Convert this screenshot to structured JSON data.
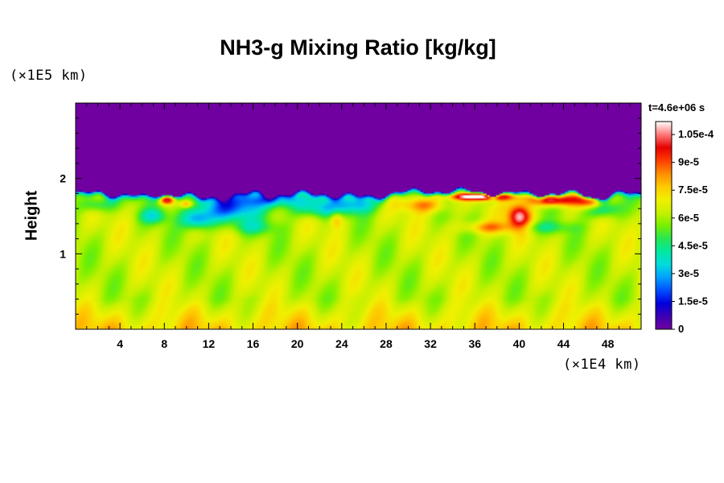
{
  "chart_data": {
    "type": "heatmap",
    "title": "NH3-g Mixing Ratio [kg/kg]",
    "xlabel": "",
    "ylabel": "Height",
    "x_unit_label": "(×1E4 km)",
    "y_unit_label": "(×1E5 km)",
    "time_label": "t=4.6e+06 s",
    "xlim": [
      0,
      51
    ],
    "ylim": [
      0,
      3
    ],
    "x_ticks": [
      4,
      8,
      12,
      16,
      20,
      24,
      28,
      32,
      36,
      40,
      44,
      48
    ],
    "x_tick_labels": [
      "4",
      "8",
      "12",
      "16",
      "20",
      "24",
      "28",
      "32",
      "36",
      "40",
      "44",
      "48"
    ],
    "y_ticks": [
      1,
      2
    ],
    "y_tick_labels": [
      "1",
      "2"
    ],
    "colorbar": {
      "min": 0,
      "max": 0.000112,
      "ticks": [
        0,
        1.5e-05,
        3e-05,
        4.5e-05,
        6e-05,
        7.5e-05,
        9e-05,
        0.000105
      ],
      "tick_labels": [
        "0",
        "1.5e-5",
        "3e-5",
        "4.5e-5",
        "6e-5",
        "7.5e-5",
        "9e-5",
        "1.05e-4"
      ]
    },
    "field_description_values": {
      "above_top_boundary": 0,
      "top_boundary_height": 1.8,
      "bulk_value": 6.3e-05,
      "near_surface_value": 7.5e-05
    }
  },
  "colors": {
    "colormap": [
      "#7000a0",
      "#3c00b4",
      "#0000dc",
      "#0050ff",
      "#00a0ff",
      "#00dcdc",
      "#00e8a0",
      "#28e650",
      "#78f000",
      "#c8f000",
      "#f0f000",
      "#ffc800",
      "#ff8c00",
      "#ff3c00",
      "#e60000",
      "#ff7878",
      "#ffffff"
    ],
    "frame": "#000000"
  }
}
